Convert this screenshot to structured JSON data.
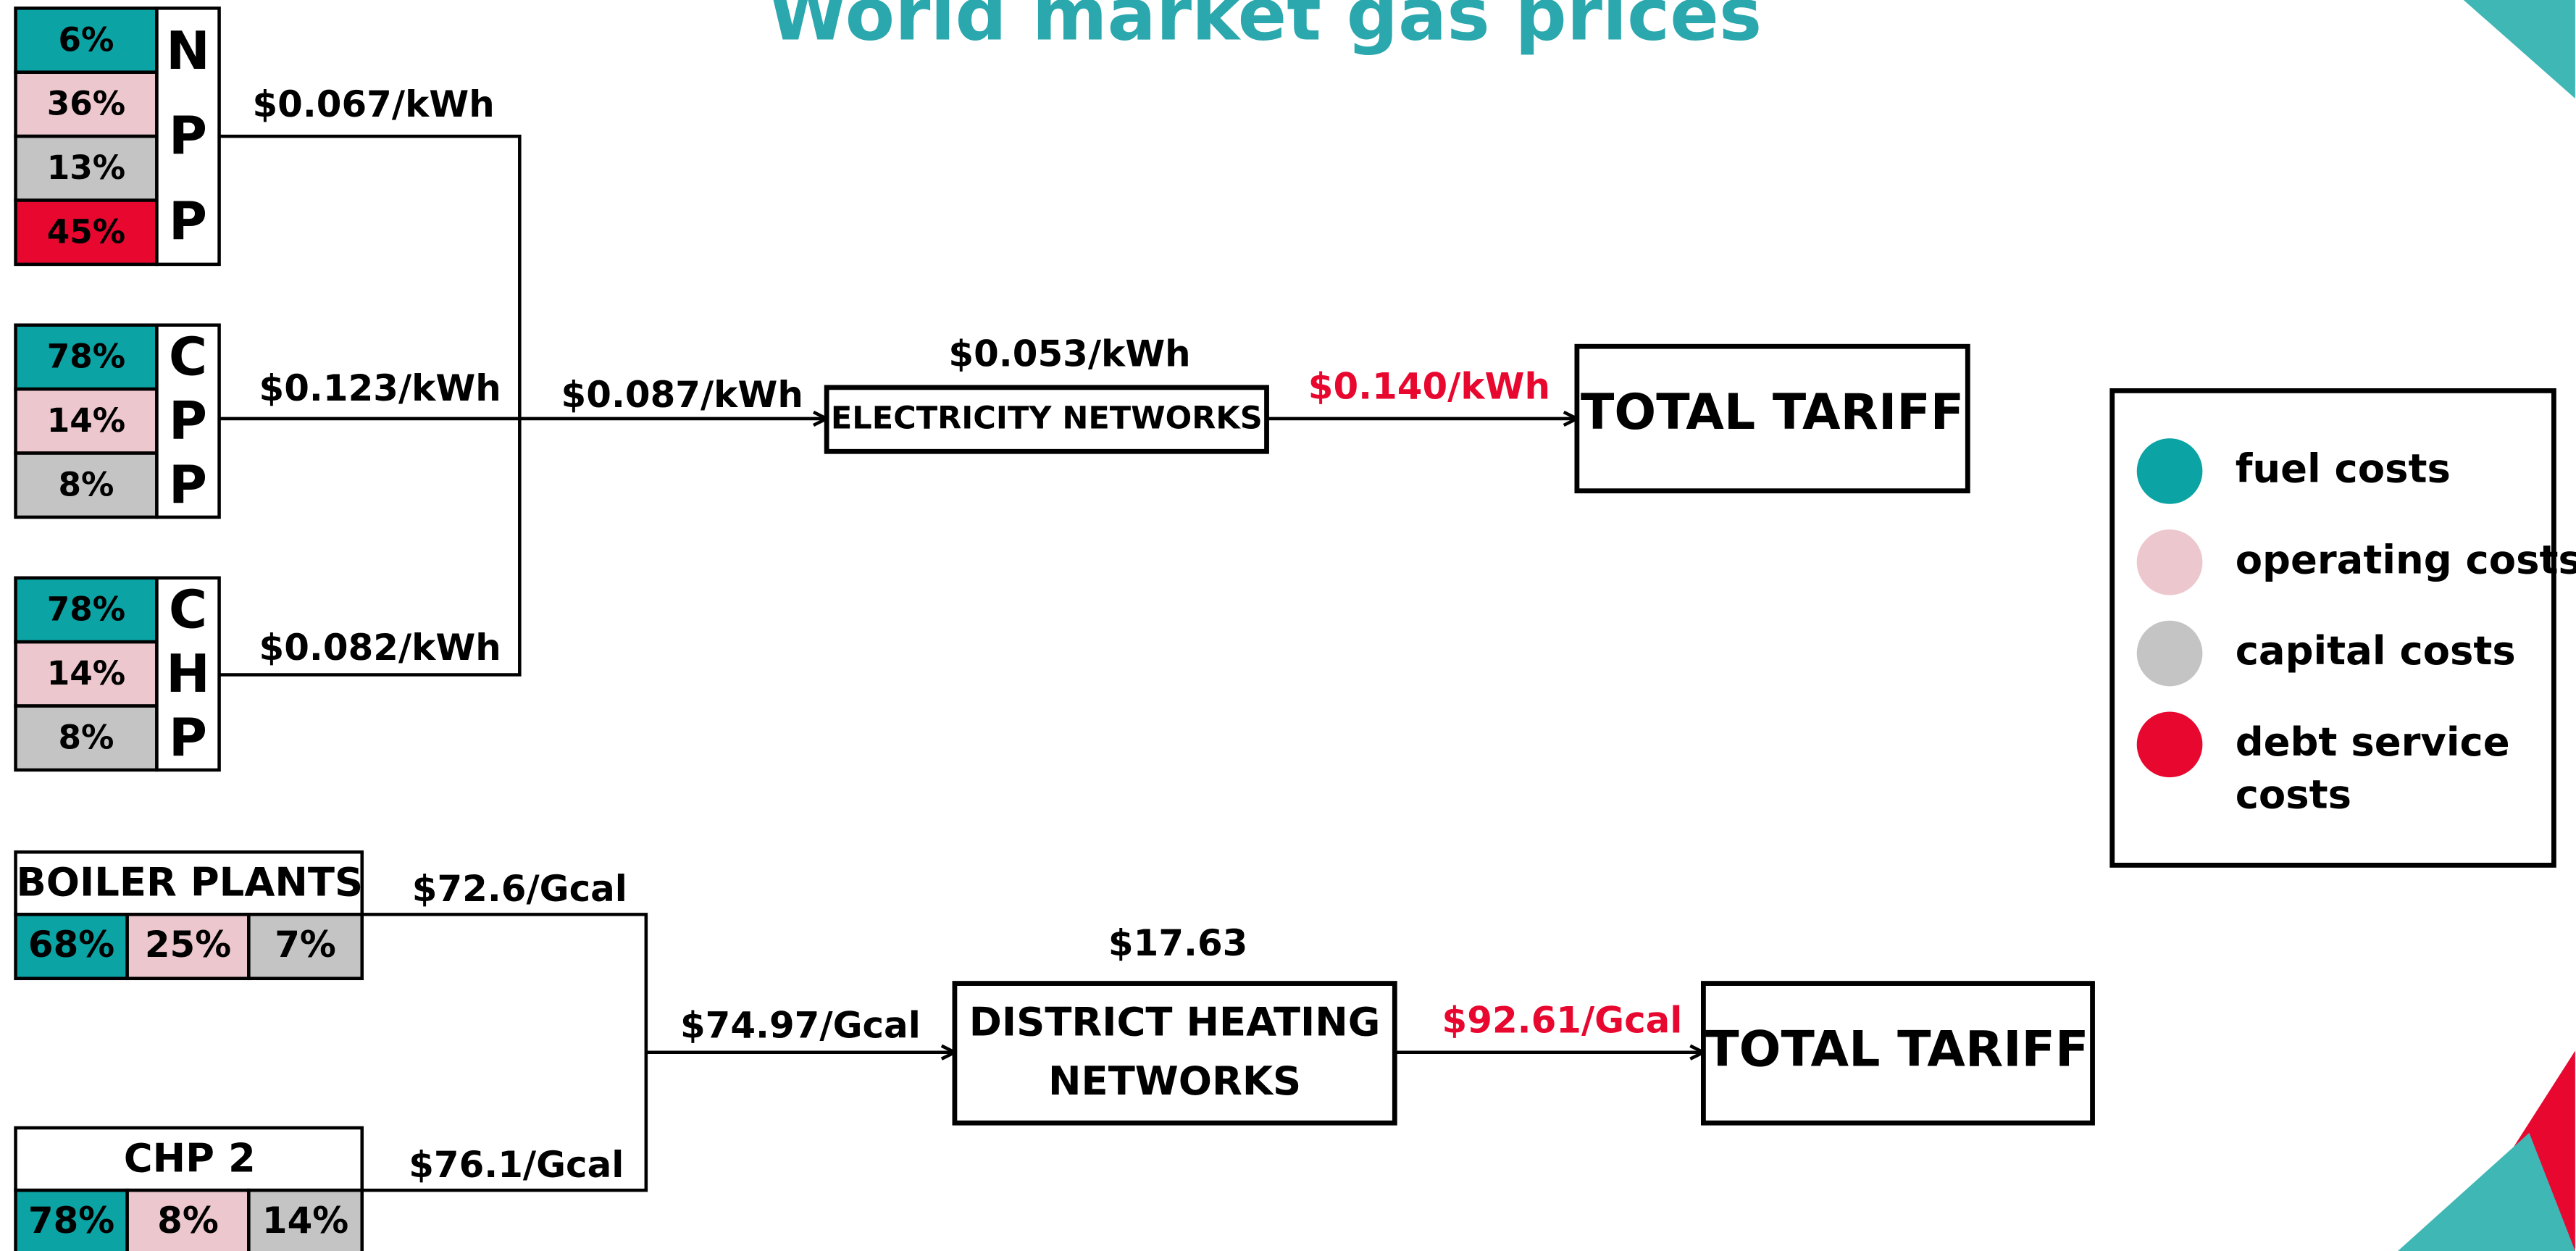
{
  "title": "World market gas prices",
  "legend": {
    "items": [
      {
        "label": [
          "fuel costs"
        ],
        "color": "#0ba3a4"
      },
      {
        "label": [
          "operating costs"
        ],
        "color": "#ecc7cd"
      },
      {
        "label": [
          "capital costs"
        ],
        "color": "#c4c4c4"
      },
      {
        "label": [
          "debt service",
          "costs"
        ],
        "color": "#e8082f"
      }
    ]
  },
  "electricity": {
    "plants": [
      {
        "label": "NPP",
        "shares": [
          "6%",
          "36%",
          "13%",
          "45%"
        ],
        "price": "$0.067/kWh"
      },
      {
        "label": "CPP",
        "shares": [
          "78%",
          "14%",
          "8%"
        ],
        "price": "$0.123/kWh"
      },
      {
        "label": "CHP",
        "shares": [
          "78%",
          "14%",
          "8%"
        ],
        "price": "$0.082/kWh"
      }
    ],
    "combined_price": "$0.087/kWh",
    "network": {
      "label": [
        "ELECTRICITY NETWORKS"
      ],
      "price": "$0.053/kWh"
    },
    "total": {
      "label": "TOTAL TARIFF",
      "price": "$0.140/kWh"
    }
  },
  "heat": {
    "plants": [
      {
        "label": "BOILER PLANTS",
        "shares": [
          "68%",
          "25%",
          "7%"
        ],
        "price": "$72.6/Gcal"
      },
      {
        "label": "CHP 2",
        "shares": [
          "78%",
          "8%",
          "14%"
        ],
        "price": "$76.1/Gcal"
      }
    ],
    "combined_price": "$74.97/Gcal",
    "network": {
      "label": [
        "DISTRICT HEATING",
        "NETWORKS"
      ],
      "price": "$17.63"
    },
    "total": {
      "label": "TOTAL TARIFF",
      "price": "$92.61/Gcal"
    }
  }
}
